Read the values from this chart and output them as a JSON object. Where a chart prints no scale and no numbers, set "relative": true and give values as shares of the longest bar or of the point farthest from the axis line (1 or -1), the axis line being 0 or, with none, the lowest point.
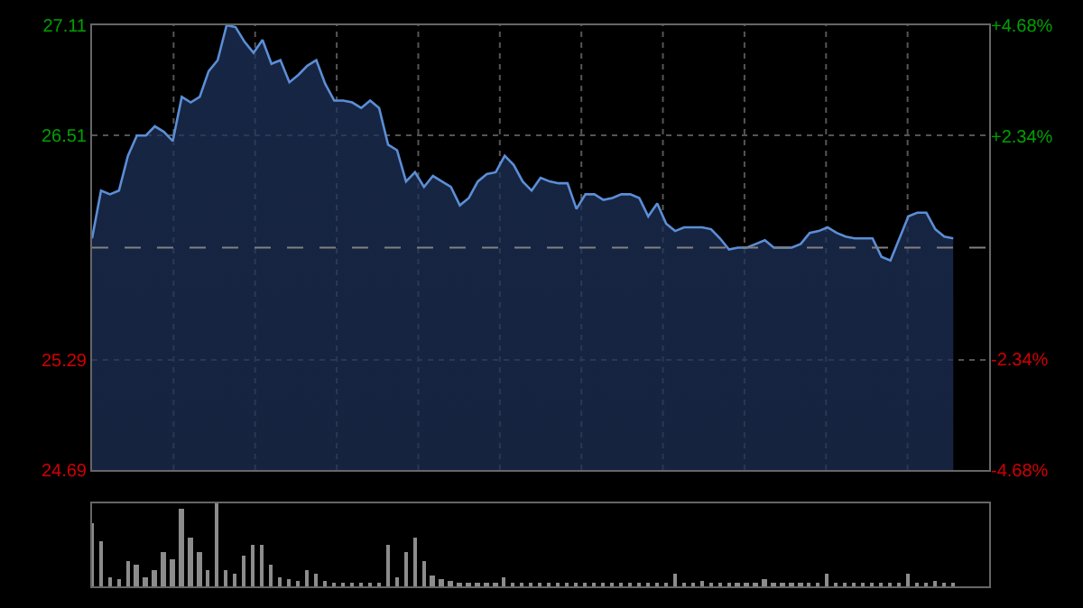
{
  "chart_data": [
    {
      "type": "area",
      "categories": [
        null,
        null,
        null,
        null,
        null,
        null,
        null,
        null,
        null,
        null,
        null,
        null,
        null,
        null,
        null,
        null,
        null,
        null,
        null,
        null,
        null,
        null,
        null,
        null,
        null,
        null,
        null,
        null,
        null,
        null,
        null,
        null,
        null,
        null,
        null,
        null,
        null,
        null,
        null,
        null,
        null,
        null,
        null,
        null,
        null,
        null,
        null,
        null,
        null,
        null,
        null,
        null,
        null,
        null,
        null,
        null,
        null,
        null,
        null,
        null,
        null,
        null,
        null,
        null,
        null,
        null,
        null,
        null,
        null,
        null,
        null,
        null,
        null,
        null,
        null,
        null,
        null,
        null,
        null,
        null,
        null,
        null,
        null,
        null,
        null,
        null,
        null,
        null,
        null,
        null,
        null,
        null,
        null,
        null,
        null,
        null,
        null,
        null,
        null,
        null,
        null
      ],
      "series": [
        {
          "color": "#5b8ed6",
          "values": [
            25.95,
            26.21,
            26.19,
            26.21,
            26.4,
            26.51,
            26.51,
            26.56,
            26.53,
            26.48,
            26.72,
            26.69,
            26.72,
            26.86,
            26.92,
            27.11,
            27.1,
            27.02,
            26.96,
            27.03,
            26.9,
            26.92,
            26.8,
            26.84,
            26.89,
            26.92,
            26.79,
            26.7,
            26.7,
            26.69,
            26.66,
            26.7,
            26.66,
            26.46,
            26.43,
            26.26,
            26.31,
            26.23,
            26.29,
            26.26,
            26.23,
            26.13,
            26.17,
            26.26,
            26.3,
            26.31,
            26.4,
            26.35,
            26.26,
            26.21,
            26.28,
            26.26,
            26.25,
            26.25,
            26.11,
            26.19,
            26.19,
            26.16,
            26.17,
            26.19,
            26.19,
            26.17,
            26.07,
            26.14,
            26.03,
            25.99,
            26.01,
            26.01,
            26.01,
            26.0,
            25.95,
            25.89,
            25.9,
            25.9,
            25.92,
            25.94,
            25.9,
            25.9,
            25.9,
            25.92,
            25.98,
            25.99,
            26.01,
            25.98,
            25.96,
            25.95,
            25.95,
            25.95,
            25.85,
            25.83,
            25.95,
            26.07,
            26.09,
            26.09,
            26.0,
            25.96,
            25.95,
            null,
            null,
            null,
            null
          ]
        }
      ],
      "ylim": [
        24.69,
        27.11
      ],
      "yticks": [
        24.69,
        25.29,
        26.51,
        27.11
      ],
      "y2lim": [
        -4.68,
        4.68
      ],
      "y2ticks": [
        {
          "value": -4.68,
          "label": "-4.68%"
        },
        {
          "value": -2.34,
          "label": "-2.34%"
        },
        {
          "value": 2.34,
          "label": "+2.34%"
        },
        {
          "value": 4.68,
          "label": "+4.68%"
        }
      ],
      "ref_lines": [
        {
          "axis": "y",
          "value": 25.9,
          "label": null,
          "color": "#808080",
          "line_style": "dashed"
        }
      ],
      "grid": true,
      "tick_labels": "y"
    },
    {
      "type": "bar",
      "relative": true,
      "color": "#8c8c8c",
      "categories": [
        null,
        null,
        null,
        null,
        null,
        null,
        null,
        null,
        null,
        null,
        null,
        null,
        null,
        null,
        null,
        null,
        null,
        null,
        null,
        null,
        null,
        null,
        null,
        null,
        null,
        null,
        null,
        null,
        null,
        null,
        null,
        null,
        null,
        null,
        null,
        null,
        null,
        null,
        null,
        null,
        null,
        null,
        null,
        null,
        null,
        null,
        null,
        null,
        null,
        null,
        null,
        null,
        null,
        null,
        null,
        null,
        null,
        null,
        null,
        null,
        null,
        null,
        null,
        null,
        null,
        null,
        null,
        null,
        null,
        null,
        null,
        null,
        null,
        null,
        null,
        null,
        null,
        null,
        null,
        null,
        null,
        null,
        null,
        null,
        null,
        null,
        null,
        null,
        null,
        null,
        null,
        null,
        null,
        null,
        null,
        null,
        null,
        null,
        null,
        null,
        null
      ],
      "values": [
        0.75,
        0.55,
        0.1,
        0.08,
        0.31,
        0.26,
        0.1,
        0.2,
        0.41,
        0.33,
        0.93,
        0.59,
        0.41,
        0.2,
        1.0,
        0.2,
        0.15,
        0.37,
        0.5,
        0.5,
        0.25,
        0.1,
        0.08,
        0.06,
        0.2,
        0.15,
        0.06,
        0.04,
        0.05,
        0.03,
        0.04,
        0.05,
        0.04,
        0.5,
        0.1,
        0.41,
        0.59,
        0.3,
        0.14,
        0.08,
        0.06,
        0.04,
        0.05,
        0.04,
        0.03,
        0.05,
        0.1,
        0.03,
        0.04,
        0.03,
        0.03,
        0.04,
        0.03,
        0.03,
        0.04,
        0.03,
        0.03,
        0.04,
        0.03,
        0.03,
        0.03,
        0.04,
        0.03,
        0.03,
        0.03,
        0.16,
        0.03,
        0.05,
        0.07,
        0.04,
        0.03,
        0.03,
        0.04,
        0.03,
        0.03,
        0.08,
        0.03,
        0.04,
        0.03,
        0.03,
        0.04,
        0.03,
        0.16,
        0.04,
        0.03,
        0.04,
        0.03,
        0.03,
        0.04,
        0.03,
        0.04,
        0.16,
        0.05,
        0.04,
        0.06,
        0.04,
        0.03,
        null,
        null,
        null,
        null
      ],
      "tick_labels": false
    }
  ]
}
